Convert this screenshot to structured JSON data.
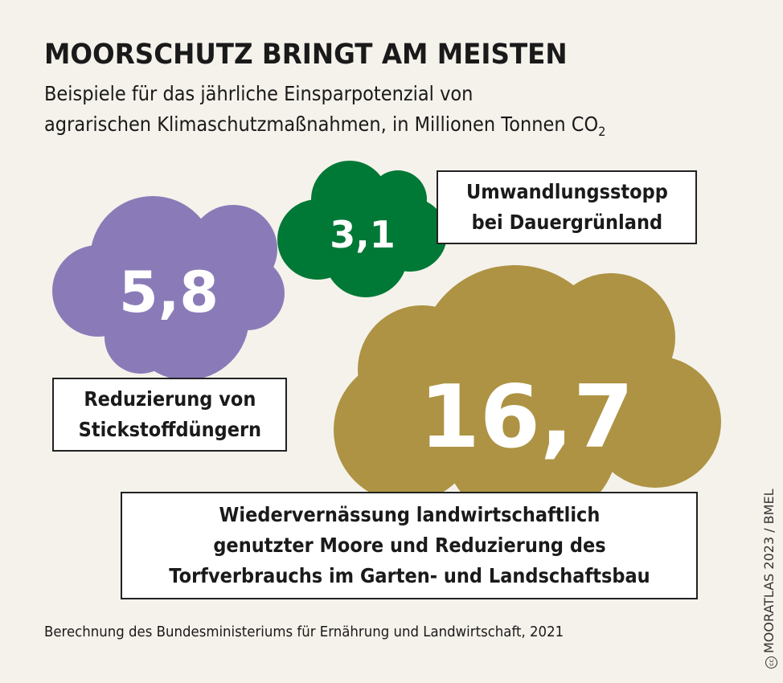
{
  "title": "MOORSCHUTZ BRINGT AM MEISTEN",
  "subtitle_line1": "Beispiele für das jährliche Einsparpotenzial von",
  "subtitle_line2": "agrarischen Klimaschutzmaßnahmen, in Millionen Tonnen CO",
  "subtitle_sub": "2",
  "source": "Berechnung des Bundesministeriums für Ernährung und Landwirtschaft, 2021",
  "credit": "MOORATLAS 2023 / BMEL",
  "credit_icon": "creative-commons-icon",
  "chart_data": {
    "type": "bubble",
    "title": "MOORSCHUTZ BRINGT AM MEISTEN",
    "unit": "Millionen Tonnen CO2",
    "items": [
      {
        "value_label": "5,8",
        "value": 5.8,
        "label_lines": [
          "Reduzierung von",
          "Stickstoffdüngern"
        ],
        "color": "#8a7bb8"
      },
      {
        "value_label": "3,1",
        "value": 3.1,
        "label_lines": [
          "Umwandlungsstopp",
          "bei Dauergrünland"
        ],
        "color": "#007836"
      },
      {
        "value_label": "16,7",
        "value": 16.7,
        "label_lines": [
          "Wiedervernässung landwirtschaftlich",
          "genutzter Moore und Reduzierung des",
          "Torfverbrauchs im Garten- und Landschaftsbau"
        ],
        "color": "#ad9343"
      }
    ]
  }
}
